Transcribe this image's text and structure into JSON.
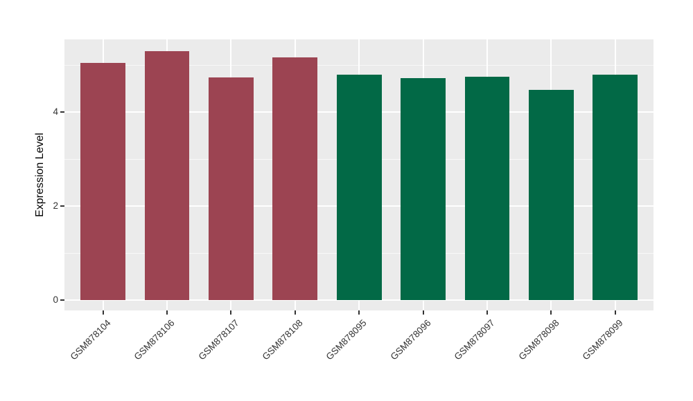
{
  "chart_data": {
    "type": "bar",
    "title": "",
    "xlabel": "",
    "ylabel": "Expression Level",
    "categories": [
      "GSM878104",
      "GSM878106",
      "GSM878107",
      "GSM878108",
      "GSM878095",
      "GSM878096",
      "GSM878097",
      "GSM878098",
      "GSM878099"
    ],
    "values": [
      5.04,
      5.29,
      4.73,
      5.16,
      4.79,
      4.72,
      4.75,
      4.47,
      4.79
    ],
    "bar_colors": [
      "#9C4452",
      "#9C4452",
      "#9C4452",
      "#9C4452",
      "#026946",
      "#026946",
      "#026946",
      "#026946",
      "#026946"
    ],
    "color_groups": {
      "maroon": "#9C4452",
      "green": "#026946"
    },
    "yticks": [
      0,
      2,
      4
    ],
    "ytick_labels": [
      "0",
      "2",
      "4"
    ],
    "yminor": [
      1,
      3,
      5
    ],
    "ylim": [
      -0.26,
      5.54
    ],
    "grid": true,
    "legend_position": "none",
    "panel_background": "#EBEBEB",
    "grid_color": "#FFFFFF",
    "axis_text_color": "#333333",
    "axis_title_color": "#000000"
  }
}
